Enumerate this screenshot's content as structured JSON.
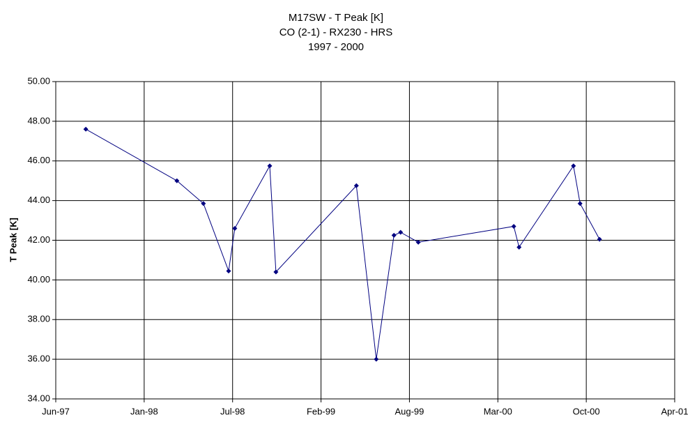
{
  "chart_data": {
    "type": "line",
    "title": [
      "M17SW - T Peak [K]",
      "CO (2-1) - RX230 - HRS",
      "1997 - 2000"
    ],
    "y_label": "T Peak [K]",
    "color": "#000080",
    "x": [
      35669,
      35875,
      35935,
      35992,
      36006,
      36085,
      36099,
      36281,
      36326,
      36366,
      36381,
      36421,
      36637,
      36649,
      36772,
      36787,
      36831
    ],
    "values": [
      47.6,
      45.0,
      43.85,
      40.45,
      42.6,
      45.75,
      40.4,
      44.75,
      36.0,
      42.25,
      42.4,
      41.9,
      42.7,
      41.65,
      45.75,
      43.85,
      42.05
    ],
    "xlim": [
      35601,
      37001
    ],
    "xticks": [
      {
        "value": 35601,
        "label": "Jun-97"
      },
      {
        "value": 35801,
        "label": "Jan-98"
      },
      {
        "value": 36001,
        "label": "Jul-98"
      },
      {
        "value": 36201,
        "label": "Feb-99"
      },
      {
        "value": 36401,
        "label": "Aug-99"
      },
      {
        "value": 36601,
        "label": "Mar-00"
      },
      {
        "value": 36801,
        "label": "Oct-00"
      },
      {
        "value": 37001,
        "label": "Apr-01"
      }
    ],
    "ylim": [
      34,
      50
    ],
    "yticks": [
      {
        "value": 34,
        "label": "34.00"
      },
      {
        "value": 36,
        "label": "36.00"
      },
      {
        "value": 38,
        "label": "38.00"
      },
      {
        "value": 40,
        "label": "40.00"
      },
      {
        "value": 42,
        "label": "42.00"
      },
      {
        "value": 44,
        "label": "44.00"
      },
      {
        "value": 46,
        "label": "46.00"
      },
      {
        "value": 48,
        "label": "48.00"
      },
      {
        "value": 50,
        "label": "50.00"
      }
    ],
    "grid": true
  }
}
